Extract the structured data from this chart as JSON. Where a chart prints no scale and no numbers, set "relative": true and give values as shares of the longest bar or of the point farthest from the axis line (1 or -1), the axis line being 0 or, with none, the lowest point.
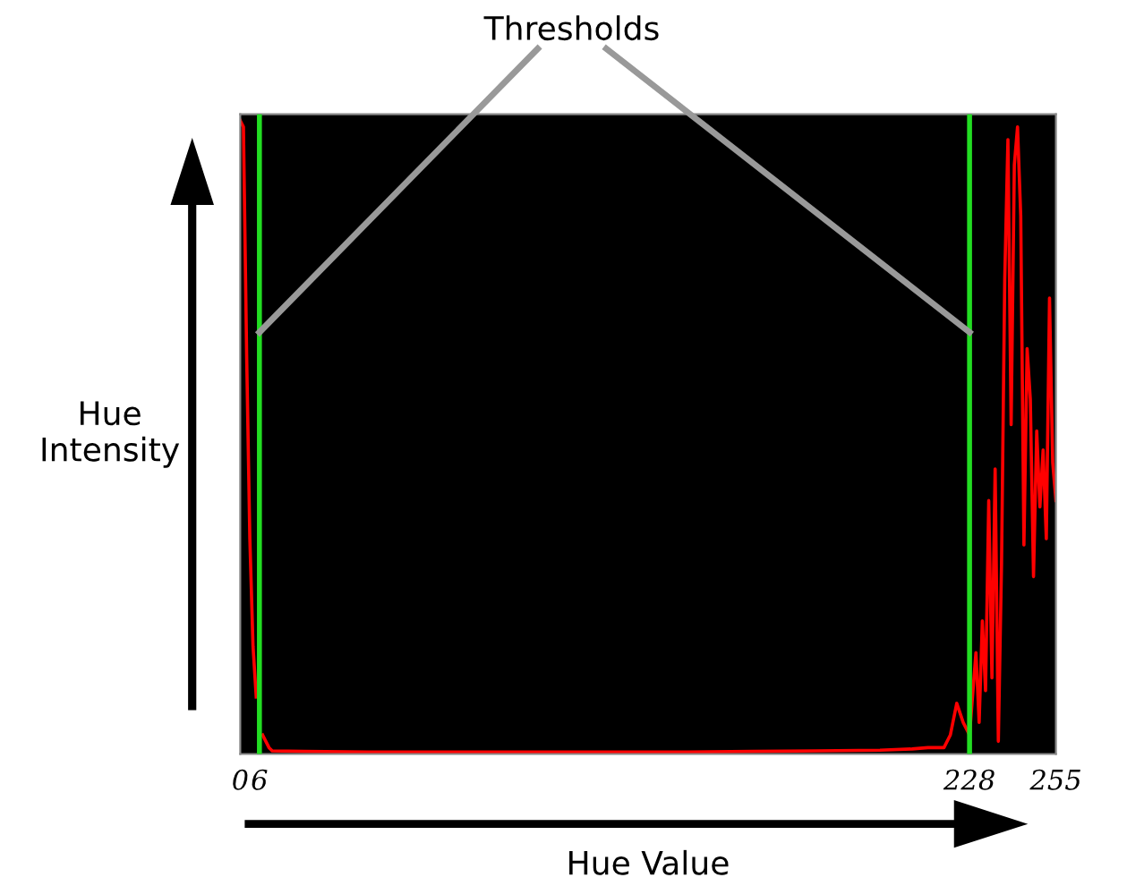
{
  "chart_data": {
    "type": "line",
    "xlabel": "Hue Value",
    "ylabel": "Hue\nIntensity",
    "relative": true,
    "annotations": [
      "Thresholds"
    ],
    "xlim": [
      0,
      255
    ],
    "xticks": [
      0,
      6,
      228,
      255
    ],
    "ref_lines": [
      {
        "axis": "x",
        "value": 6,
        "color": "#22dd22"
      },
      {
        "axis": "x",
        "value": 228,
        "color": "#22dd22"
      }
    ],
    "series": [
      {
        "color": "#ff0000",
        "x": [
          0,
          1,
          2,
          3,
          4,
          5,
          6,
          7,
          8,
          9,
          10,
          20,
          40,
          60,
          80,
          100,
          120,
          140,
          160,
          180,
          200,
          210,
          215,
          220,
          222,
          224,
          226,
          228,
          230,
          231,
          232,
          233,
          234,
          235,
          236,
          237,
          238,
          239,
          240,
          241,
          242,
          243,
          244,
          245,
          246,
          247,
          248,
          249,
          250,
          251,
          252,
          253,
          254,
          255
        ],
        "values": [
          1.0,
          0.99,
          0.63,
          0.34,
          0.17,
          0.09,
          null,
          0.03,
          0.02,
          0.01,
          0.005,
          0.004,
          0.003,
          0.003,
          0.003,
          0.003,
          0.003,
          0.003,
          0.004,
          0.005,
          0.006,
          0.008,
          0.01,
          0.01,
          0.03,
          0.08,
          0.05,
          0.03,
          0.16,
          0.05,
          0.21,
          0.1,
          0.4,
          0.12,
          0.45,
          0.02,
          0.3,
          0.75,
          0.97,
          0.52,
          0.93,
          0.99,
          0.85,
          0.33,
          0.64,
          0.56,
          0.28,
          0.51,
          0.39,
          0.48,
          0.34,
          0.72,
          0.46,
          0.4
        ]
      }
    ]
  }
}
